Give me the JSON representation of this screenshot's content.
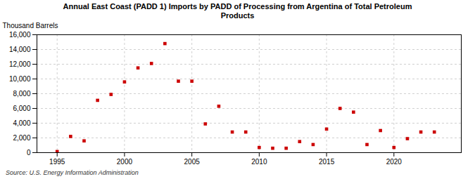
{
  "chart_data": {
    "type": "scatter",
    "title": "Annual East Coast (PADD 1) Imports by PADD of Processing from Argentina of Total Petroleum\nProducts",
    "ylabel": "Thousand Barrels",
    "source": "Source: U.S. Energy Information Administration",
    "color": "#cc0000",
    "marker": "square",
    "grid": true,
    "xlim": [
      1993.5,
      2025
    ],
    "ylim": [
      0,
      16000
    ],
    "xticks": [
      1995,
      2000,
      2005,
      2010,
      2015,
      2020
    ],
    "yticks": [
      0,
      {
        "value": 2000,
        "label": "2,000"
      },
      {
        "value": 4000,
        "label": "4,000"
      },
      {
        "value": 6000,
        "label": "6,000"
      },
      {
        "value": 8000,
        "label": "8,000"
      },
      {
        "value": 10000,
        "label": "10,000"
      },
      {
        "value": 12000,
        "label": "12,000"
      },
      {
        "value": 14000,
        "label": "14,000"
      },
      {
        "value": 16000,
        "label": "16,000"
      }
    ],
    "x": [
      1995,
      1996,
      1997,
      1998,
      1999,
      2000,
      2001,
      2002,
      2003,
      2004,
      2005,
      2006,
      2007,
      2008,
      2009,
      2010,
      2011,
      2012,
      2013,
      2014,
      2015,
      2016,
      2017,
      2018,
      2019,
      2020,
      2021,
      2022,
      2023
    ],
    "values": [
      150,
      2200,
      1600,
      7100,
      7900,
      9600,
      11500,
      12100,
      14800,
      9700,
      9700,
      3900,
      6300,
      2800,
      2800,
      700,
      600,
      600,
      1500,
      1100,
      3200,
      6000,
      5500,
      1100,
      3000,
      700,
      1900,
      2800,
      2800
    ]
  }
}
